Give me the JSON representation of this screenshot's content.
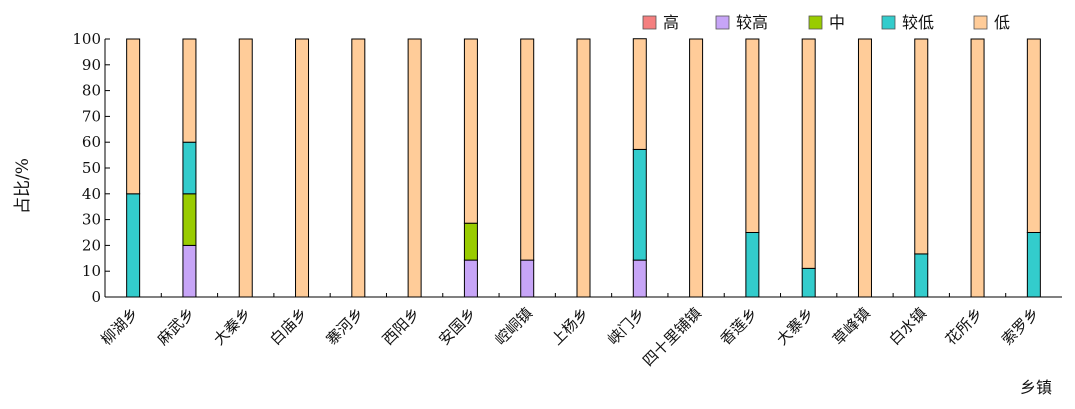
{
  "chart_data": {
    "type": "bar",
    "stacked": true,
    "xlabel": "乡镇",
    "ylabel": "占比/%",
    "ylim": [
      0,
      100
    ],
    "yticks": [
      0,
      10,
      20,
      30,
      40,
      50,
      60,
      70,
      80,
      90,
      100
    ],
    "legend_position": "top-right",
    "grid": false,
    "categories": [
      "柳湖乡",
      "麻武乡",
      "大秦乡",
      "白庙乡",
      "寨河乡",
      "西阳乡",
      "安国乡",
      "崆峒镇",
      "上杨乡",
      "峡门乡",
      "四十里铺镇",
      "香莲乡",
      "大寨乡",
      "草峰镇",
      "白水镇",
      "花所乡",
      "索罗乡"
    ],
    "series": [
      {
        "name": "高",
        "color": "#f47f7f",
        "values": [
          0,
          0,
          0,
          0,
          0,
          0,
          0,
          0,
          0,
          0,
          0,
          0,
          0,
          0,
          0,
          0,
          0
        ]
      },
      {
        "name": "较高",
        "color": "#c7a5f7",
        "values": [
          0,
          20,
          0,
          0,
          0,
          0,
          14.3,
          14.3,
          0,
          14.3,
          0,
          0,
          0,
          0,
          0,
          0,
          0
        ]
      },
      {
        "name": "中",
        "color": "#99cc00",
        "values": [
          0,
          20,
          0,
          0,
          0,
          0,
          14.3,
          0,
          0,
          0,
          0,
          0,
          0,
          0,
          0,
          0,
          0
        ]
      },
      {
        "name": "较低",
        "color": "#33cccc",
        "values": [
          40,
          20,
          0,
          0,
          0,
          0,
          0,
          0,
          0,
          42.9,
          0,
          25,
          11.1,
          0,
          16.7,
          0,
          25
        ]
      },
      {
        "name": "低",
        "color": "#ffcc99",
        "values": [
          60,
          40,
          100,
          100,
          100,
          100,
          71.4,
          85.7,
          100,
          42.9,
          100,
          75,
          88.9,
          100,
          83.3,
          100,
          75
        ]
      }
    ]
  }
}
